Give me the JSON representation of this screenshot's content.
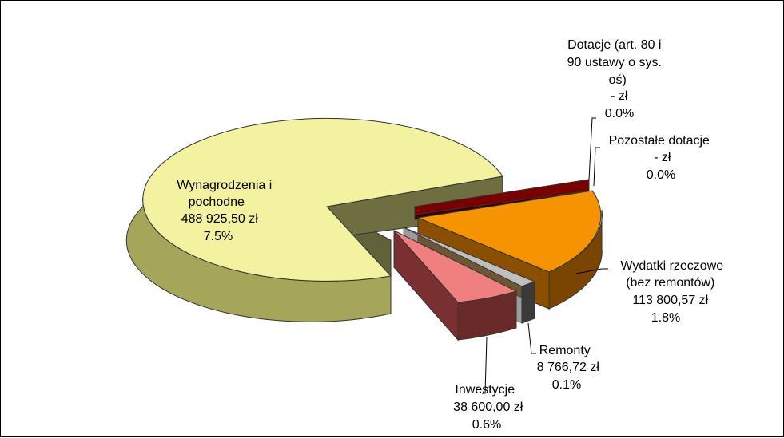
{
  "chart_data": {
    "type": "pie",
    "style": "3d-exploded",
    "legend": "none",
    "slices": [
      {
        "name": "Wynagrodzenia i pochodne",
        "amount": "488 925,50 zł",
        "percent_label": "7.5%",
        "value": 7.5,
        "color": "#f2f2a0",
        "label_lines": [
          "Wynagrodzenia i",
          "pochodne",
          "488 925,50 zł",
          "7.5%"
        ]
      },
      {
        "name": "Dotacje (art. 80 i 90 ustawy o sys. oś)",
        "amount": "-   zł",
        "percent_label": "0.0%",
        "value": 0.0,
        "color": "#7a0000",
        "label_lines": [
          "Dotacje (art. 80 i",
          "90 ustawy o sys.",
          "oś)",
          "-   zł",
          "0.0%"
        ]
      },
      {
        "name": "Pozostałe dotacje",
        "amount": "-   zł",
        "percent_label": "0.0%",
        "value": 0.0,
        "color": "#7a0000",
        "label_lines": [
          "Pozostałe dotacje",
          "-   zł",
          "0.0%"
        ]
      },
      {
        "name": "Wydatki rzeczowe (bez remontów)",
        "amount": "113 800,57 zł",
        "percent_label": "1.8%",
        "value": 1.8,
        "color": "#f59400",
        "label_lines": [
          "Wydatki rzeczowe",
          "(bez remontów)",
          "113 800,57 zł",
          "1.8%"
        ]
      },
      {
        "name": "Remonty",
        "amount": "8 766,72 zł",
        "percent_label": "0.1%",
        "value": 0.1,
        "color": "#a6a6a6",
        "label_lines": [
          "Remonty",
          "8 766,72 zł",
          "0.1%"
        ]
      },
      {
        "name": "Inwestycje",
        "amount": "38 600,00 zł",
        "percent_label": "0.6%",
        "value": 0.6,
        "color": "#f08080",
        "label_lines": [
          "Inwestycje",
          "38 600,00 zł",
          "0.6%"
        ]
      }
    ]
  }
}
